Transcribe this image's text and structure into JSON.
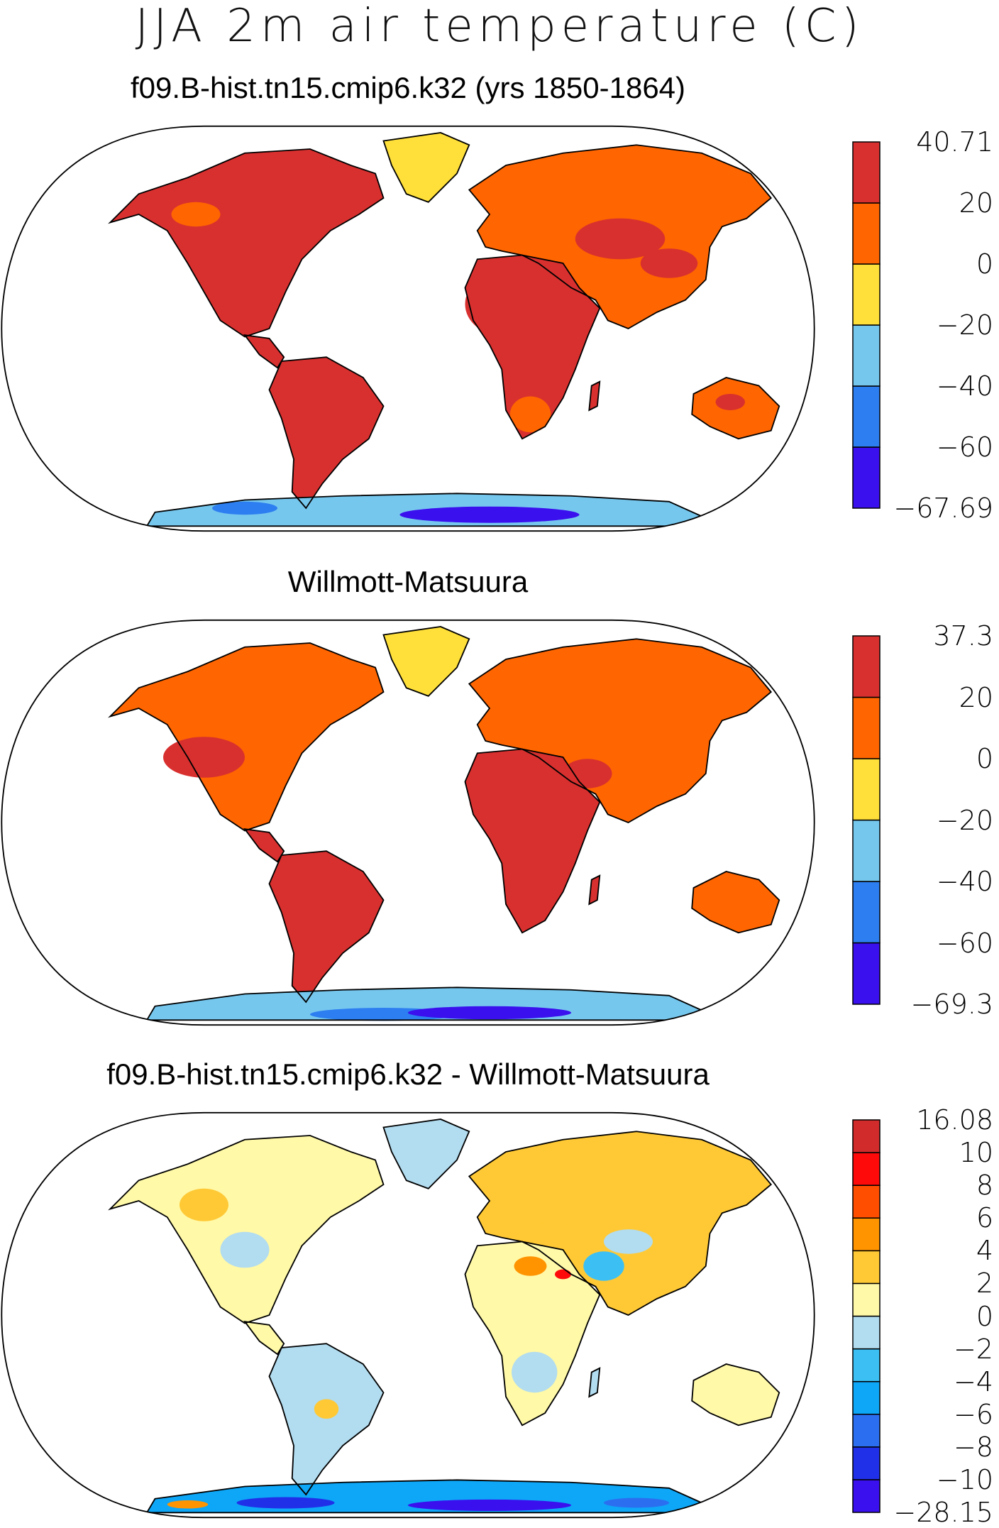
{
  "figure": {
    "title": "JJA 2m air temperature (C)"
  },
  "panels": [
    {
      "id": "model",
      "title": "f09.B-hist.tn15.cmip6.k32 (yrs 1850-1864)",
      "colorbar": {
        "colors": [
          "#3a10ee",
          "#2d7ef0",
          "#76c7ee",
          "#ffe03a",
          "#ff6500",
          "#d8302f"
        ],
        "labels": [
          "-67.69",
          "-60",
          "-40",
          "-20",
          "0",
          "20",
          "40.71"
        ]
      }
    },
    {
      "id": "obs",
      "title": "Willmott-Matsuura",
      "colorbar": {
        "colors": [
          "#3a10ee",
          "#2d7ef0",
          "#76c7ee",
          "#ffe03a",
          "#ff6500",
          "#d8302f"
        ],
        "labels": [
          "-69.3",
          "-60",
          "-40",
          "-20",
          "0",
          "20",
          "37.3"
        ]
      }
    },
    {
      "id": "diff",
      "title": "f09.B-hist.tn15.cmip6.k32 - Willmott-Matsuura",
      "colorbar": {
        "colors": [
          "#3a10ee",
          "#2030e8",
          "#2b6ff0",
          "#0ea6f7",
          "#3cc0f4",
          "#b2dcf0",
          "#fff9a8",
          "#ffc935",
          "#ff9400",
          "#ff4e00",
          "#ff0a0a",
          "#d12b2b"
        ],
        "labels": [
          "-28.15",
          "-10",
          "-8",
          "-6",
          "-4",
          "-2",
          "0",
          "2",
          "4",
          "6",
          "8",
          "10",
          "16.08"
        ]
      }
    }
  ]
}
